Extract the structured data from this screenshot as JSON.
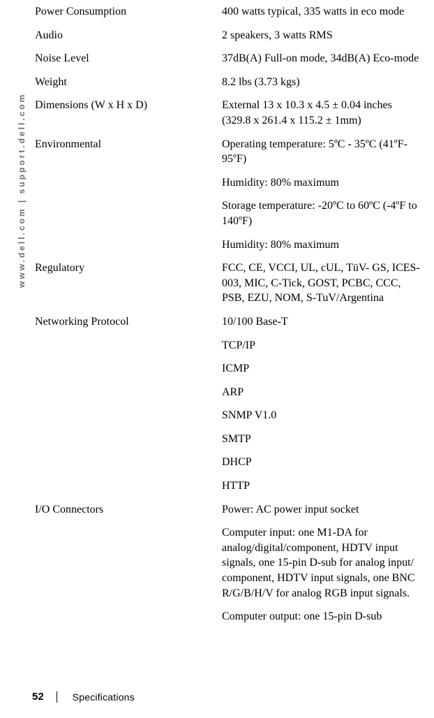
{
  "sidebar": "www.dell.com | support.dell.com",
  "specs": [
    {
      "label": "Power Consumption",
      "values": [
        "400 watts typical, 335 watts in eco mode"
      ]
    },
    {
      "label": "Audio",
      "values": [
        "2 speakers, 3 watts RMS"
      ]
    },
    {
      "label": "Noise Level",
      "values": [
        "37dB(A) Full-on mode, 34dB(A) Eco-mode"
      ]
    },
    {
      "label": "Weight",
      "values": [
        "8.2 lbs (3.73 kgs)"
      ]
    },
    {
      "label": "Dimensions (W x H x D)",
      "values": [
        "External 13 x 10.3 x 4.5 ± 0.04 inches (329.8 x 261.4 x 115.2 ± 1mm)"
      ]
    },
    {
      "label": "Environmental",
      "values": [
        "Operating temperature:  5ºC - 35ºC (41ºF- 95ºF)",
        "Humidity:  80% maximum",
        "Storage temperature: -20ºC to 60ºC  (-4ºF to 140ºF)",
        "Humidity:  80% maximum"
      ]
    },
    {
      "label": "Regulatory",
      "values": [
        "FCC, CE, VCCI, UL, cUL, TüV- GS, ICES-003, MIC, C-Tick, GOST, PCBC, CCC, PSB, EZU, NOM, S-TuV/Argentina"
      ]
    },
    {
      "label": "Networking Protocol",
      "values": [
        "10/100 Base-T",
        "TCP/IP",
        "ICMP",
        "ARP",
        "SNMP V1.0",
        "SMTP",
        "DHCP",
        "HTTP"
      ]
    },
    {
      "label": "I/O Connectors",
      "values": [
        "Power: AC power input socket",
        "Computer input: one M1-DA for analog/digital/component, HDTV input signals, one 15-pin D-sub for analog input/ component, HDTV input signals, one BNC R/G/B/H/V for analog RGB input signals.",
        "Computer output: one 15-pin D-sub"
      ]
    }
  ],
  "footer": {
    "page": "52",
    "section": "Specifications"
  }
}
